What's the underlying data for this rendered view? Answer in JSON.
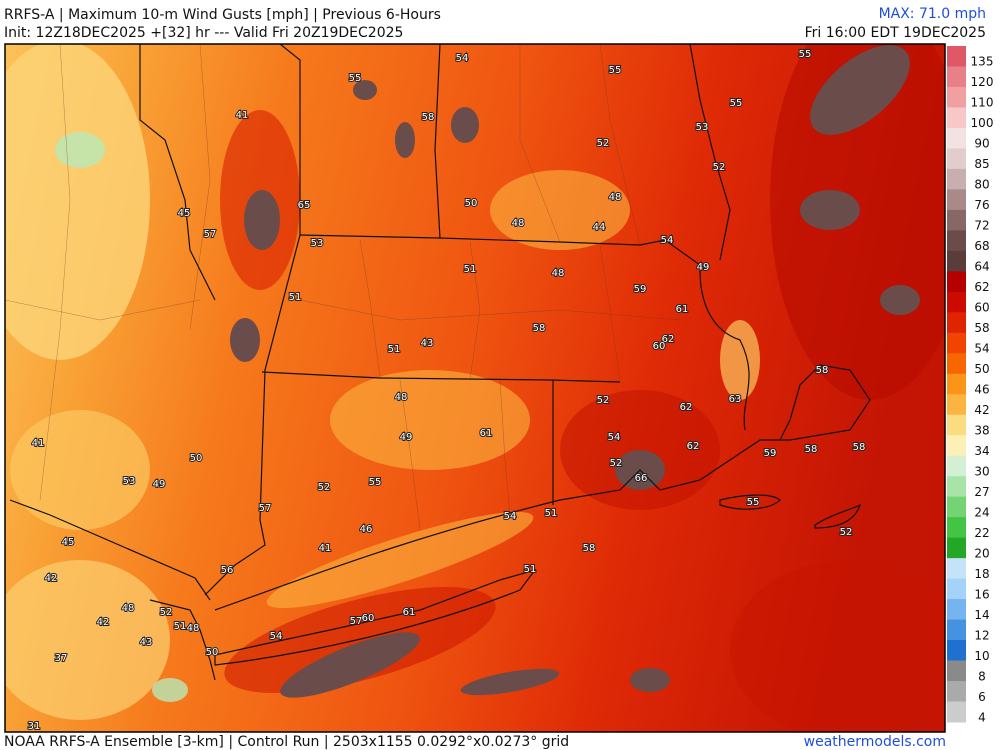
{
  "header": {
    "title": "RRFS-A | Maximum 10-m Wind Gusts [mph] | Previous 6-Hours",
    "init": "Init: 12Z18DEC2025 +[32] hr --- Valid Fri 20Z19DEC2025",
    "max": "MAX: 71.0 mph",
    "valid": "Fri 16:00 EDT 19DEC2025"
  },
  "colorbar": {
    "levels": [
      135,
      120,
      110,
      100,
      90,
      85,
      80,
      76,
      72,
      68,
      64,
      62,
      60,
      58,
      54,
      50,
      46,
      42,
      38,
      34,
      30,
      27,
      24,
      22,
      20,
      18,
      16,
      14,
      12,
      10,
      8,
      6,
      4
    ],
    "colors": [
      "#e05868",
      "#e88088",
      "#f0a0a0",
      "#f8c8c8",
      "#f2e2e2",
      "#e2cccc",
      "#c8aeae",
      "#a88a88",
      "#886866",
      "#6a4c4a",
      "#5a3c3a",
      "#b40000",
      "#cc0a00",
      "#e02400",
      "#f04400",
      "#f86600",
      "#fc9418",
      "#fcb440",
      "#fcdc80",
      "#fcf0b4",
      "#d4f0d4",
      "#a8e4a8",
      "#74d474",
      "#44c444",
      "#22a826",
      "#c4e2f8",
      "#a4d2f8",
      "#74b4f0",
      "#4492e0",
      "#2070d0",
      "#8a8a8a",
      "#aaaaaa",
      "#cccccc"
    ]
  },
  "map": {
    "labels": [
      55,
      54,
      55,
      55,
      41,
      58,
      55,
      53,
      52,
      52,
      45,
      65,
      50,
      48,
      48,
      44,
      57,
      54,
      53,
      51,
      48,
      49,
      51,
      59,
      61,
      58,
      62,
      60,
      51,
      43,
      58,
      48,
      52,
      62,
      63,
      41,
      49,
      61,
      54,
      62,
      50,
      59,
      58,
      58,
      52,
      53,
      49,
      52,
      55,
      66,
      57,
      54,
      51,
      46,
      41,
      45,
      58,
      55,
      52,
      56,
      42,
      51,
      48,
      52,
      42,
      51,
      48,
      57,
      60,
      61,
      54,
      43,
      50,
      37,
      31
    ]
  },
  "footer": {
    "source": "NOAA RRFS-A Ensemble [3-km] | Control Run | 2503x1155 0.0292°x0.0273° grid",
    "site": "weathermodels.com"
  }
}
